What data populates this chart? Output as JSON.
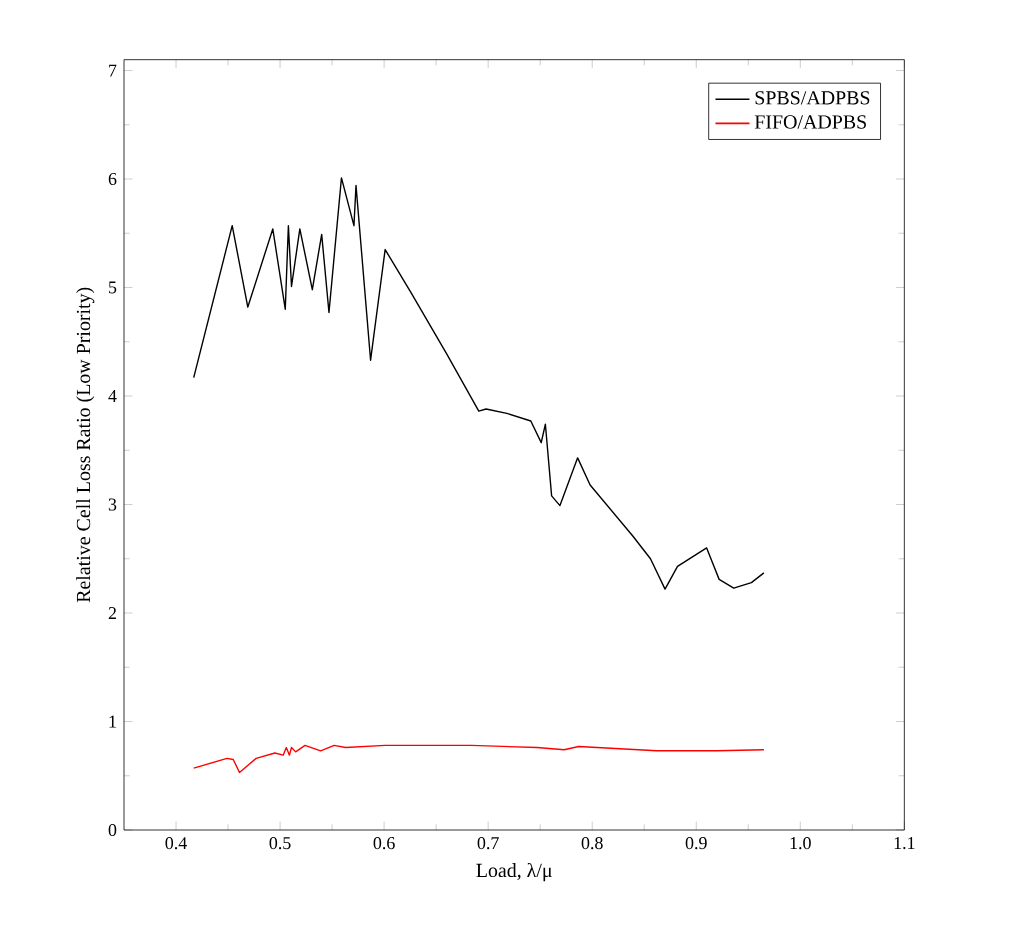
{
  "chart_data": {
    "type": "line",
    "xlabel": "Load, λ/μ",
    "ylabel": "Relative Cell Loss Ratio (Low Priority)",
    "xlim": [
      0.35,
      1.1
    ],
    "ylim": [
      0,
      7.1
    ],
    "xticks": [
      0.4,
      0.5,
      0.6,
      0.7,
      0.8,
      0.9,
      {
        "value": 1.0,
        "label": "1.0"
      },
      1.1
    ],
    "yticks": [
      0,
      1,
      2,
      3,
      4,
      5,
      6,
      7
    ],
    "legend": "top right",
    "grid": false,
    "marker": "none",
    "line_style": "solid",
    "series": [
      {
        "name": "SPBS/ADPBS",
        "color": "#000000",
        "x": [
          0.417,
          0.454,
          0.469,
          0.493,
          0.505,
          0.508,
          0.511,
          0.519,
          0.531,
          0.54,
          0.547,
          0.559,
          0.571,
          0.573,
          0.587,
          0.601,
          0.626,
          0.66,
          0.691,
          0.698,
          0.718,
          0.741,
          0.751,
          0.755,
          0.761,
          0.769,
          0.786,
          0.798,
          0.839,
          0.856,
          0.87,
          0.882,
          0.91,
          0.922,
          0.936,
          0.953,
          0.965
        ],
        "values": [
          4.17,
          5.57,
          4.82,
          5.54,
          4.8,
          5.57,
          5.01,
          5.54,
          4.98,
          5.49,
          4.77,
          6.01,
          5.57,
          5.94,
          4.33,
          5.35,
          4.95,
          4.39,
          3.86,
          3.88,
          3.84,
          3.77,
          3.57,
          3.74,
          3.08,
          2.99,
          3.43,
          3.18,
          2.71,
          2.5,
          2.22,
          2.43,
          2.6,
          2.31,
          2.23,
          2.28,
          2.37
        ]
      },
      {
        "name": "FIFO/ADPBS",
        "color": "#ff0000",
        "x": [
          0.417,
          0.449,
          0.455,
          0.461,
          0.477,
          0.495,
          0.503,
          0.506,
          0.509,
          0.511,
          0.515,
          0.524,
          0.539,
          0.552,
          0.563,
          0.601,
          0.684,
          0.747,
          0.773,
          0.787,
          0.862,
          0.92,
          0.965
        ],
        "values": [
          0.57,
          0.66,
          0.65,
          0.53,
          0.66,
          0.71,
          0.69,
          0.76,
          0.69,
          0.76,
          0.72,
          0.78,
          0.73,
          0.78,
          0.76,
          0.78,
          0.78,
          0.76,
          0.74,
          0.77,
          0.73,
          0.73,
          0.74
        ]
      }
    ]
  }
}
